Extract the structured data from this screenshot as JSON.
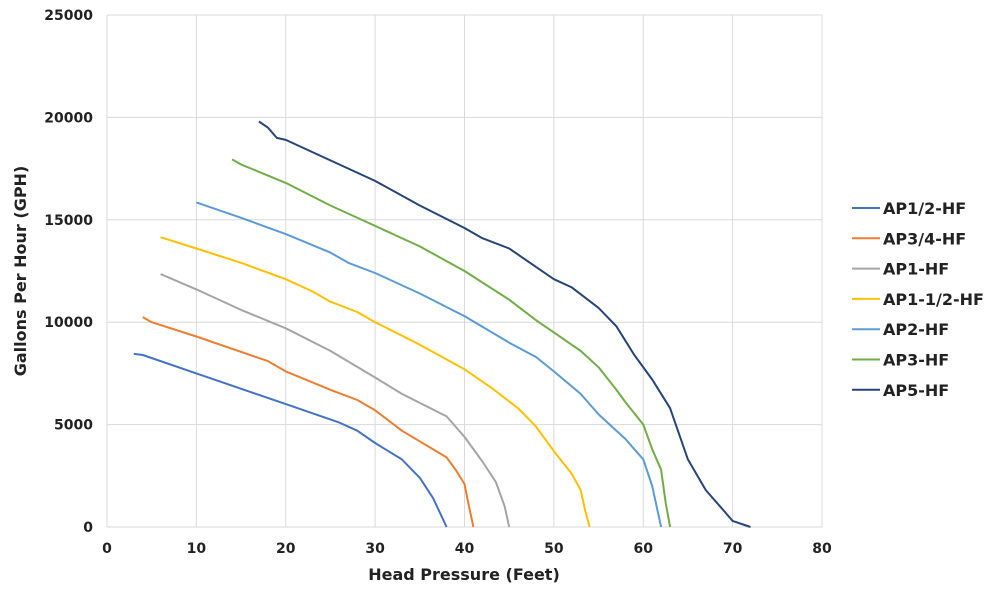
{
  "chart_data": {
    "type": "line",
    "title": "",
    "xlabel": "Head Pressure (Feet)",
    "ylabel": "Gallons Per Hour (GPH)",
    "xlim": [
      0,
      80
    ],
    "ylim": [
      0,
      25000
    ],
    "xticks": [
      0,
      10,
      20,
      30,
      40,
      50,
      60,
      70,
      80
    ],
    "yticks": [
      0,
      5000,
      10000,
      15000,
      20000,
      25000
    ],
    "grid": true,
    "legend_position": "right",
    "series": [
      {
        "name": "AP1/2-HF",
        "color": "#4472C4",
        "points": [
          [
            3,
            8450
          ],
          [
            4,
            8400
          ],
          [
            10,
            7500
          ],
          [
            20,
            6000
          ],
          [
            26,
            5100
          ],
          [
            28,
            4700
          ],
          [
            30,
            4100
          ],
          [
            33,
            3300
          ],
          [
            35,
            2400
          ],
          [
            36.5,
            1400
          ],
          [
            38,
            0
          ]
        ]
      },
      {
        "name": "AP3/4-HF",
        "color": "#ED7D31",
        "points": [
          [
            4,
            10250
          ],
          [
            5,
            10000
          ],
          [
            10,
            9300
          ],
          [
            18,
            8100
          ],
          [
            20,
            7600
          ],
          [
            25,
            6700
          ],
          [
            28,
            6200
          ],
          [
            30,
            5700
          ],
          [
            33,
            4700
          ],
          [
            38,
            3400
          ],
          [
            39,
            2800
          ],
          [
            40,
            2100
          ],
          [
            40.5,
            1000
          ],
          [
            41,
            0
          ]
        ]
      },
      {
        "name": "AP1-HF",
        "color": "#A5A5A5",
        "points": [
          [
            6,
            12350
          ],
          [
            10,
            11600
          ],
          [
            15,
            10600
          ],
          [
            20,
            9700
          ],
          [
            25,
            8600
          ],
          [
            30,
            7300
          ],
          [
            33,
            6500
          ],
          [
            38,
            5400
          ],
          [
            40,
            4400
          ],
          [
            42,
            3200
          ],
          [
            43.5,
            2200
          ],
          [
            44.5,
            1000
          ],
          [
            45,
            0
          ]
        ]
      },
      {
        "name": "AP1-1/2-HF",
        "color": "#FFC000",
        "points": [
          [
            6,
            14150
          ],
          [
            10,
            13600
          ],
          [
            15,
            12900
          ],
          [
            20,
            12100
          ],
          [
            23,
            11500
          ],
          [
            25,
            11000
          ],
          [
            28,
            10500
          ],
          [
            30,
            10000
          ],
          [
            35,
            8900
          ],
          [
            40,
            7700
          ],
          [
            43,
            6800
          ],
          [
            46,
            5800
          ],
          [
            48,
            4900
          ],
          [
            50,
            3700
          ],
          [
            52,
            2600
          ],
          [
            53,
            1800
          ],
          [
            53.5,
            800
          ],
          [
            54,
            0
          ]
        ]
      },
      {
        "name": "AP2-HF",
        "color": "#5B9BD5",
        "points": [
          [
            10,
            15850
          ],
          [
            15,
            15100
          ],
          [
            20,
            14300
          ],
          [
            25,
            13400
          ],
          [
            27,
            12900
          ],
          [
            30,
            12400
          ],
          [
            35,
            11400
          ],
          [
            40,
            10300
          ],
          [
            45,
            9000
          ],
          [
            48,
            8300
          ],
          [
            50,
            7600
          ],
          [
            53,
            6500
          ],
          [
            55,
            5500
          ],
          [
            57,
            4700
          ],
          [
            58,
            4300
          ],
          [
            59,
            3800
          ],
          [
            60,
            3300
          ],
          [
            61,
            2000
          ],
          [
            62,
            0
          ]
        ]
      },
      {
        "name": "AP3-HF",
        "color": "#70AD47",
        "points": [
          [
            14,
            17950
          ],
          [
            15,
            17700
          ],
          [
            20,
            16800
          ],
          [
            25,
            15700
          ],
          [
            30,
            14700
          ],
          [
            32,
            14300
          ],
          [
            35,
            13700
          ],
          [
            40,
            12500
          ],
          [
            45,
            11100
          ],
          [
            48,
            10100
          ],
          [
            50,
            9500
          ],
          [
            53,
            8600
          ],
          [
            55,
            7800
          ],
          [
            57,
            6700
          ],
          [
            58,
            6100
          ],
          [
            60,
            5000
          ],
          [
            61,
            3800
          ],
          [
            62,
            2800
          ],
          [
            62.5,
            1200
          ],
          [
            63,
            0
          ]
        ]
      },
      {
        "name": "AP5-HF",
        "color": "#264478",
        "points": [
          [
            17,
            19800
          ],
          [
            18,
            19500
          ],
          [
            19,
            19000
          ],
          [
            20,
            18900
          ],
          [
            25,
            17900
          ],
          [
            30,
            16900
          ],
          [
            35,
            15700
          ],
          [
            40,
            14600
          ],
          [
            42,
            14100
          ],
          [
            45,
            13600
          ],
          [
            48,
            12700
          ],
          [
            50,
            12100
          ],
          [
            52,
            11700
          ],
          [
            55,
            10700
          ],
          [
            57,
            9800
          ],
          [
            59,
            8400
          ],
          [
            61,
            7200
          ],
          [
            63,
            5800
          ],
          [
            65,
            3300
          ],
          [
            67,
            1800
          ],
          [
            69,
            800
          ],
          [
            70,
            300
          ],
          [
            72,
            0
          ]
        ]
      }
    ]
  }
}
